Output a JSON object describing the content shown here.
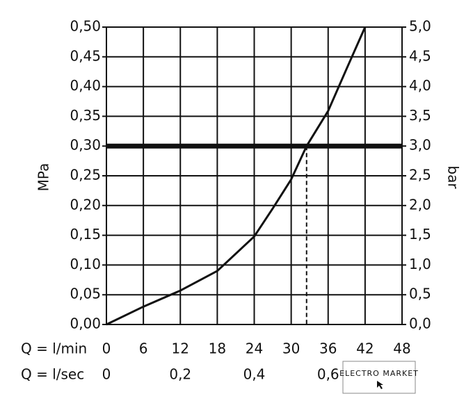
{
  "chart_data": {
    "type": "line",
    "ylabel": "MPa",
    "y2label": "bar",
    "xlabel": "Q = l/min",
    "x2label": "Q = l/sec",
    "x": [
      0,
      6,
      12,
      18,
      24,
      27,
      30,
      32.5,
      36,
      39,
      42
    ],
    "series": [
      {
        "color": "#111111",
        "values": [
          0,
          0.03,
          0.057,
          0.09,
          0.148,
          0.195,
          0.244,
          0.3,
          0.359,
          0.43,
          0.5
        ]
      }
    ],
    "xlim": [
      0,
      48
    ],
    "xticks": [
      0,
      6,
      12,
      18,
      24,
      30,
      36,
      42,
      48
    ],
    "x2lim": [
      0,
      0.8
    ],
    "x2ticks": [
      0,
      {
        "value": 0.2,
        "label": "0,2"
      },
      {
        "value": 0.4,
        "label": "0,4"
      },
      {
        "value": 0.6,
        "label": "0,6"
      }
    ],
    "ylim": [
      0,
      0.5
    ],
    "yticks": [
      {
        "value": 0,
        "label": "0,00"
      },
      {
        "value": 0.05,
        "label": "0,05"
      },
      {
        "value": 0.1,
        "label": "0,10"
      },
      {
        "value": 0.15,
        "label": "0,15"
      },
      {
        "value": 0.2,
        "label": "0,20"
      },
      {
        "value": 0.25,
        "label": "0,25"
      },
      {
        "value": 0.3,
        "label": "0,30"
      },
      {
        "value": 0.35,
        "label": "0,35"
      },
      {
        "value": 0.4,
        "label": "0,40"
      },
      {
        "value": 0.45,
        "label": "0,45"
      },
      {
        "value": 0.5,
        "label": "0,50"
      }
    ],
    "y2lim": [
      0,
      5
    ],
    "y2ticks": [
      {
        "value": 0,
        "label": "0,0"
      },
      {
        "value": 0.5,
        "label": "0,5"
      },
      {
        "value": 1,
        "label": "1,0"
      },
      {
        "value": 1.5,
        "label": "1,5"
      },
      {
        "value": 2,
        "label": "2,0"
      },
      {
        "value": 2.5,
        "label": "2,5"
      },
      {
        "value": 3,
        "label": "3,0"
      },
      {
        "value": 3.5,
        "label": "3,5"
      },
      {
        "value": 4,
        "label": "4,0"
      },
      {
        "value": 4.5,
        "label": "4,5"
      },
      {
        "value": 5,
        "label": "5,0"
      }
    ],
    "grid": true,
    "reference_line": 0.3,
    "reference_x": 32.5,
    "watermark": "ELECTRO MARKET"
  }
}
